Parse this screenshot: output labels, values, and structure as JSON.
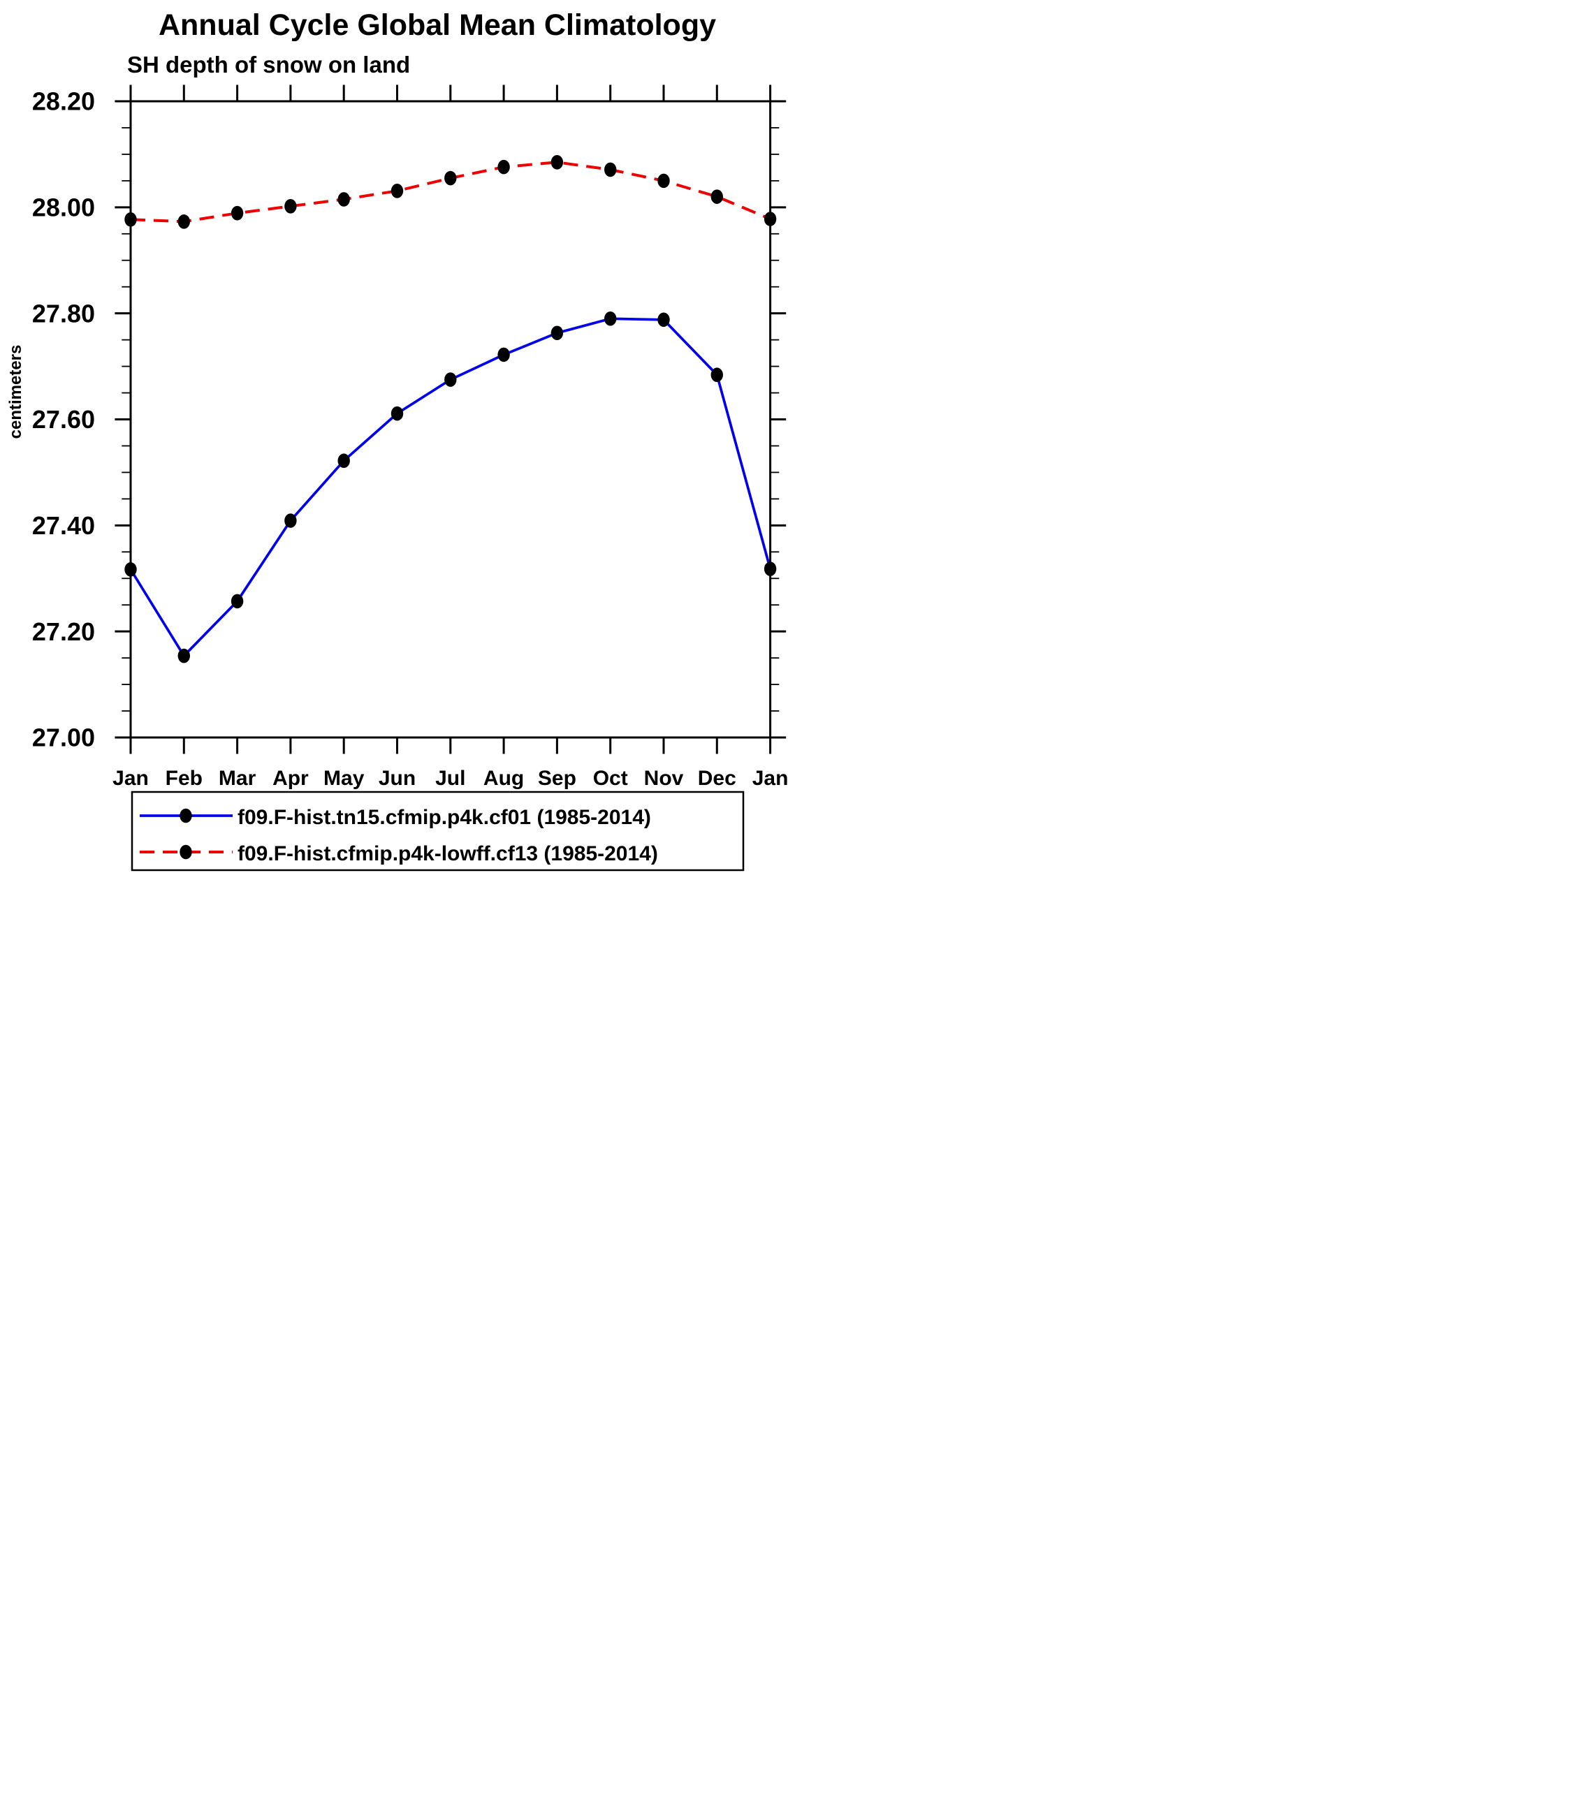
{
  "chart_data": {
    "type": "line",
    "title": "Annual Cycle Global Mean Climatology",
    "subtitle": "SH depth of snow on land",
    "ylabel": "centimeters",
    "x_categories": [
      "Jan",
      "Feb",
      "Mar",
      "Apr",
      "May",
      "Jun",
      "Jul",
      "Aug",
      "Sep",
      "Oct",
      "Nov",
      "Dec",
      "Jan"
    ],
    "ylim": [
      27.0,
      28.2
    ],
    "y_major_ticks": [
      28.2,
      28.0,
      27.8,
      27.6,
      27.4,
      27.2,
      27.0
    ],
    "y_tick_labels": [
      "28.20",
      "28.00",
      "27.80",
      "27.60",
      "27.40",
      "27.20",
      "27.00"
    ],
    "y_minor_step": 0.05,
    "grid": false,
    "legend_position": "bottom",
    "axis_color": "#000000",
    "marker_color": "#000000",
    "series": [
      {
        "name": "f09.F-hist.tn15.cfmip.p4k.cf01 (1985-2014)",
        "color": "#0000ee",
        "line_style": "solid",
        "marker": "filled-circle",
        "values": [
          27.317,
          27.154,
          27.257,
          27.409,
          27.522,
          27.611,
          27.675,
          27.722,
          27.763,
          27.79,
          27.788,
          27.684,
          27.318
        ]
      },
      {
        "name": "f09.F-hist.cfmip.p4k-lowff.cf13 (1985-2014)",
        "color": "#ee0000",
        "line_style": "dashed",
        "marker": "filled-circle",
        "values": [
          27.977,
          27.973,
          27.989,
          28.002,
          28.015,
          28.031,
          28.055,
          28.076,
          28.085,
          28.071,
          28.05,
          28.02,
          27.978
        ]
      }
    ]
  }
}
